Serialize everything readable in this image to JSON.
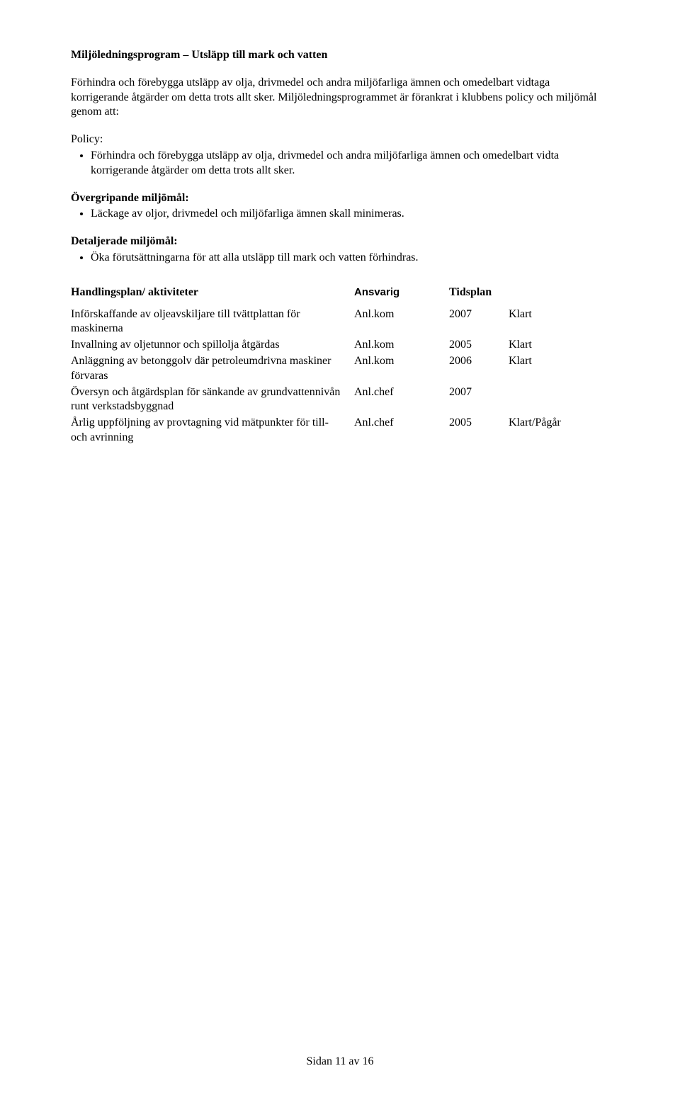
{
  "title": "Miljöledningsprogram – Utsläpp till mark och vatten",
  "intro": "Förhindra och förebygga utsläpp av olja, drivmedel och andra miljöfarliga ämnen och omedelbart vidtaga korrigerande åtgärder om detta trots allt sker. Miljöledningsprogrammet är förankrat i klubbens policy och miljömål genom att:",
  "policy_label": "Policy:",
  "policy_bullets": [
    "Förhindra och förebygga utsläpp av olja, drivmedel och andra miljöfarliga ämnen och omedelbart vidta korrigerande åtgärder om detta trots allt sker."
  ],
  "over_label": "Övergripande miljömål:",
  "over_bullets": [
    "Läckage av oljor, drivmedel och miljöfarliga ämnen skall minimeras."
  ],
  "detail_label": "Detaljerade miljömål:",
  "detail_bullets": [
    "Öka förutsättningarna för att alla utsläpp till mark och vatten förhindras."
  ],
  "table": {
    "headers": {
      "activity": "Handlingsplan/ aktiviteter",
      "ansvarig": "Ansvarig",
      "tidsplan": "Tidsplan",
      "status": ""
    },
    "rows": [
      {
        "activity": "Införskaffande av oljeavskiljare till tvättplattan för maskinerna",
        "ansvarig": "Anl.kom",
        "tidsplan": "2007",
        "status": "Klart"
      },
      {
        "activity": "Invallning av oljetunnor och spillolja åtgärdas",
        "ansvarig": "Anl.kom",
        "tidsplan": "2005",
        "status": "Klart"
      },
      {
        "activity": "Anläggning av betonggolv där petroleumdrivna maskiner förvaras",
        "ansvarig": "Anl.kom",
        "tidsplan": "2006",
        "status": "Klart"
      },
      {
        "activity": "Översyn och åtgärdsplan för sänkande av grundvattennivån runt verkstadsbyggnad",
        "ansvarig": "Anl.chef",
        "tidsplan": "2007",
        "status": ""
      },
      {
        "activity": "Årlig uppföljning av provtagning vid mätpunkter för till- och avrinning",
        "ansvarig": "Anl.chef",
        "tidsplan": "2005",
        "status": "Klart/Pågår"
      }
    ]
  },
  "footer": "Sidan 11  av 16"
}
